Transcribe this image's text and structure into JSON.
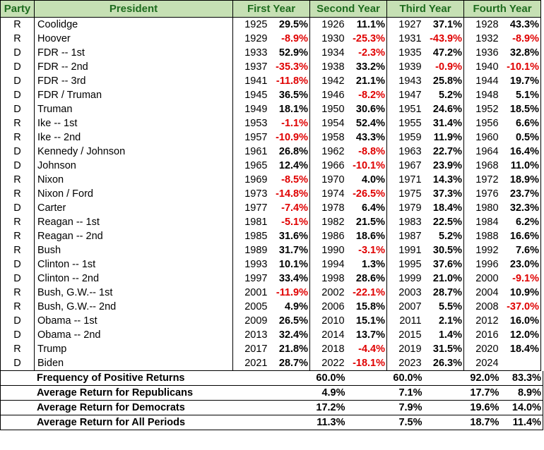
{
  "headers": {
    "party": "Party",
    "president": "President",
    "first": "First Year",
    "second": "Second Year",
    "third": "Third Year",
    "fourth": "Fourth Year"
  },
  "rows": [
    {
      "party": "R",
      "president": "Coolidge",
      "y1": "1925",
      "r1": "29.5%",
      "y2": "1926",
      "r2": "11.1%",
      "y3": "1927",
      "r3": "37.1%",
      "y4": "1928",
      "r4": "43.3%"
    },
    {
      "party": "R",
      "president": "Hoover",
      "y1": "1929",
      "r1": "-8.9%",
      "y2": "1930",
      "r2": "-25.3%",
      "y3": "1931",
      "r3": "-43.9%",
      "y4": "1932",
      "r4": "-8.9%"
    },
    {
      "party": "D",
      "president": "FDR -- 1st",
      "y1": "1933",
      "r1": "52.9%",
      "y2": "1934",
      "r2": "-2.3%",
      "y3": "1935",
      "r3": "47.2%",
      "y4": "1936",
      "r4": "32.8%"
    },
    {
      "party": "D",
      "president": "FDR -- 2nd",
      "y1": "1937",
      "r1": "-35.3%",
      "y2": "1938",
      "r2": "33.2%",
      "y3": "1939",
      "r3": "-0.9%",
      "y4": "1940",
      "r4": "-10.1%"
    },
    {
      "party": "D",
      "president": "FDR -- 3rd",
      "y1": "1941",
      "r1": "-11.8%",
      "y2": "1942",
      "r2": "21.1%",
      "y3": "1943",
      "r3": "25.8%",
      "y4": "1944",
      "r4": "19.7%"
    },
    {
      "party": "D",
      "president": "FDR / Truman",
      "y1": "1945",
      "r1": "36.5%",
      "y2": "1946",
      "r2": "-8.2%",
      "y3": "1947",
      "r3": "5.2%",
      "y4": "1948",
      "r4": "5.1%"
    },
    {
      "party": "D",
      "president": "Truman",
      "y1": "1949",
      "r1": "18.1%",
      "y2": "1950",
      "r2": "30.6%",
      "y3": "1951",
      "r3": "24.6%",
      "y4": "1952",
      "r4": "18.5%"
    },
    {
      "party": "R",
      "president": "Ike -- 1st",
      "y1": "1953",
      "r1": "-1.1%",
      "y2": "1954",
      "r2": "52.4%",
      "y3": "1955",
      "r3": "31.4%",
      "y4": "1956",
      "r4": "6.6%"
    },
    {
      "party": "R",
      "president": "Ike -- 2nd",
      "y1": "1957",
      "r1": "-10.9%",
      "y2": "1958",
      "r2": "43.3%",
      "y3": "1959",
      "r3": "11.9%",
      "y4": "1960",
      "r4": "0.5%"
    },
    {
      "party": "D",
      "president": "Kennedy / Johnson",
      "y1": "1961",
      "r1": "26.8%",
      "y2": "1962",
      "r2": "-8.8%",
      "y3": "1963",
      "r3": "22.7%",
      "y4": "1964",
      "r4": "16.4%"
    },
    {
      "party": "D",
      "president": "Johnson",
      "y1": "1965",
      "r1": "12.4%",
      "y2": "1966",
      "r2": "-10.1%",
      "y3": "1967",
      "r3": "23.9%",
      "y4": "1968",
      "r4": "11.0%"
    },
    {
      "party": "R",
      "president": "Nixon",
      "y1": "1969",
      "r1": "-8.5%",
      "y2": "1970",
      "r2": "4.0%",
      "y3": "1971",
      "r3": "14.3%",
      "y4": "1972",
      "r4": "18.9%"
    },
    {
      "party": "R",
      "president": "Nixon / Ford",
      "y1": "1973",
      "r1": "-14.8%",
      "y2": "1974",
      "r2": "-26.5%",
      "y3": "1975",
      "r3": "37.3%",
      "y4": "1976",
      "r4": "23.7%"
    },
    {
      "party": "D",
      "president": "Carter",
      "y1": "1977",
      "r1": "-7.4%",
      "y2": "1978",
      "r2": "6.4%",
      "y3": "1979",
      "r3": "18.4%",
      "y4": "1980",
      "r4": "32.3%"
    },
    {
      "party": "R",
      "president": "Reagan -- 1st",
      "y1": "1981",
      "r1": "-5.1%",
      "y2": "1982",
      "r2": "21.5%",
      "y3": "1983",
      "r3": "22.5%",
      "y4": "1984",
      "r4": "6.2%"
    },
    {
      "party": "R",
      "president": "Reagan -- 2nd",
      "y1": "1985",
      "r1": "31.6%",
      "y2": "1986",
      "r2": "18.6%",
      "y3": "1987",
      "r3": "5.2%",
      "y4": "1988",
      "r4": "16.6%"
    },
    {
      "party": "R",
      "president": "Bush",
      "y1": "1989",
      "r1": "31.7%",
      "y2": "1990",
      "r2": "-3.1%",
      "y3": "1991",
      "r3": "30.5%",
      "y4": "1992",
      "r4": "7.6%"
    },
    {
      "party": "D",
      "president": "Clinton -- 1st",
      "y1": "1993",
      "r1": "10.1%",
      "y2": "1994",
      "r2": "1.3%",
      "y3": "1995",
      "r3": "37.6%",
      "y4": "1996",
      "r4": "23.0%"
    },
    {
      "party": "D",
      "president": "Clinton -- 2nd",
      "y1": "1997",
      "r1": "33.4%",
      "y2": "1998",
      "r2": "28.6%",
      "y3": "1999",
      "r3": "21.0%",
      "y4": "2000",
      "r4": "-9.1%"
    },
    {
      "party": "R",
      "president": "Bush, G.W.-- 1st",
      "y1": "2001",
      "r1": "-11.9%",
      "y2": "2002",
      "r2": "-22.1%",
      "y3": "2003",
      "r3": "28.7%",
      "y4": "2004",
      "r4": "10.9%"
    },
    {
      "party": "R",
      "president": "Bush, G.W.-- 2nd",
      "y1": "2005",
      "r1": "4.9%",
      "y2": "2006",
      "r2": "15.8%",
      "y3": "2007",
      "r3": "5.5%",
      "y4": "2008",
      "r4": "-37.0%"
    },
    {
      "party": "D",
      "president": "Obama -- 1st",
      "y1": "2009",
      "r1": "26.5%",
      "y2": "2010",
      "r2": "15.1%",
      "y3": "2011",
      "r3": "2.1%",
      "y4": "2012",
      "r4": "16.0%"
    },
    {
      "party": "D",
      "president": "Obama -- 2nd",
      "y1": "2013",
      "r1": "32.4%",
      "y2": "2014",
      "r2": "13.7%",
      "y3": "2015",
      "r3": "1.4%",
      "y4": "2016",
      "r4": "12.0%"
    },
    {
      "party": "R",
      "president": "Trump",
      "y1": "2017",
      "r1": "21.8%",
      "y2": "2018",
      "r2": "-4.4%",
      "y3": "2019",
      "r3": "31.5%",
      "y4": "2020",
      "r4": "18.4%"
    },
    {
      "party": "D",
      "president": "Biden",
      "y1": "2021",
      "r1": "28.7%",
      "y2": "2022",
      "r2": "-18.1%",
      "y3": "2023",
      "r3": "26.3%",
      "y4": "2024",
      "r4": ""
    }
  ],
  "summary": [
    {
      "label": "Frequency of Positive Returns",
      "v1": "60.0%",
      "v2": "60.0%",
      "v3": "92.0%",
      "v4": "83.3%"
    },
    {
      "label": "Average Return for Republicans",
      "v1": "4.9%",
      "v2": "7.1%",
      "v3": "17.7%",
      "v4": "8.9%"
    },
    {
      "label": "Average Return for Democrats",
      "v1": "17.2%",
      "v2": "7.9%",
      "v3": "19.6%",
      "v4": "14.0%"
    },
    {
      "label": "Average Return for All Periods",
      "v1": "11.3%",
      "v2": "7.5%",
      "v3": "18.7%",
      "v4": "11.4%"
    }
  ],
  "colors": {
    "header_bg": "#c6e0b4",
    "header_text": "#1e6b1e",
    "negative": "#e00000"
  }
}
